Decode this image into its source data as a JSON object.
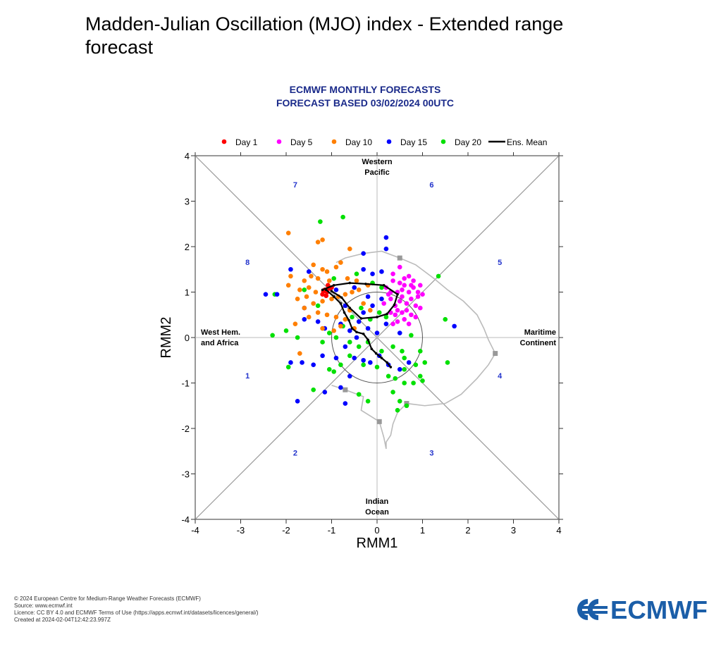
{
  "page": {
    "title": "Madden-Julian Oscillation (MJO) index - Extended range forecast"
  },
  "chart_data": {
    "type": "scatter",
    "title": "ECMWF MONTHLY FORECASTS",
    "subtitle": "FORECAST  BASED 03/02/2024 00UTC",
    "xlabel": "RMM1",
    "ylabel": "RMM2",
    "xlim": [
      -4,
      4
    ],
    "ylim": [
      -4,
      4
    ],
    "xticks": [
      -4,
      -3,
      -2,
      -1,
      0,
      1,
      2,
      3,
      4
    ],
    "yticks": [
      -4,
      -3,
      -2,
      -1,
      0,
      1,
      2,
      3,
      4
    ],
    "phases": [
      {
        "label": "1",
        "x": -2.85,
        "y": -0.9
      },
      {
        "label": "2",
        "x": -1.8,
        "y": -2.6
      },
      {
        "label": "3",
        "x": 1.2,
        "y": -2.6
      },
      {
        "label": "4",
        "x": 2.7,
        "y": -0.9
      },
      {
        "label": "5",
        "x": 2.7,
        "y": 1.6
      },
      {
        "label": "6",
        "x": 1.2,
        "y": 3.3
      },
      {
        "label": "7",
        "x": -1.8,
        "y": 3.3
      },
      {
        "label": "8",
        "x": -2.85,
        "y": 1.6
      }
    ],
    "regions": {
      "top": [
        "Western",
        "Pacific"
      ],
      "bottom": [
        "Indian",
        "Ocean"
      ],
      "left": [
        "West Hem.",
        "and Africa"
      ],
      "right": [
        "Maritime",
        "Continent"
      ]
    },
    "legend": [
      {
        "label": "Day 1",
        "color": "#ff0000",
        "kind": "dot"
      },
      {
        "label": "Day 5",
        "color": "#ff00ff",
        "kind": "dot"
      },
      {
        "label": "Day 10",
        "color": "#ff7f00",
        "kind": "dot"
      },
      {
        "label": "Day 15",
        "color": "#0000ff",
        "kind": "dot"
      },
      {
        "label": "Day 20",
        "color": "#00e000",
        "kind": "dot"
      },
      {
        "label": "Ens. Mean",
        "color": "#000000",
        "kind": "line"
      }
    ],
    "series": [
      {
        "name": "Day 1",
        "color": "#ff0000",
        "points": [
          [
            -1.15,
            1.05
          ],
          [
            -1.1,
            1.0
          ],
          [
            -1.05,
            1.08
          ],
          [
            -1.2,
            0.95
          ],
          [
            -1.0,
            1.1
          ],
          [
            -1.12,
            0.92
          ],
          [
            -1.08,
            1.15
          ],
          [
            -1.18,
            1.02
          ]
        ]
      },
      {
        "name": "Day 5",
        "color": "#ff00ff",
        "points": [
          [
            0.5,
            1.55
          ],
          [
            0.7,
            1.35
          ],
          [
            0.35,
            1.25
          ],
          [
            0.6,
            1.15
          ],
          [
            0.8,
            1.1
          ],
          [
            0.9,
            1.0
          ],
          [
            0.45,
            1.0
          ],
          [
            0.55,
            0.9
          ],
          [
            0.75,
            0.85
          ],
          [
            0.3,
            0.85
          ],
          [
            0.65,
            0.75
          ],
          [
            0.85,
            0.7
          ],
          [
            0.4,
            0.7
          ],
          [
            0.55,
            0.55
          ],
          [
            0.75,
            0.5
          ],
          [
            0.3,
            0.55
          ],
          [
            0.6,
            0.4
          ],
          [
            0.45,
            0.35
          ],
          [
            0.9,
            0.9
          ],
          [
            0.95,
            1.15
          ],
          [
            0.2,
            1.1
          ],
          [
            0.25,
            0.95
          ],
          [
            0.7,
            1.0
          ],
          [
            0.5,
            1.2
          ],
          [
            0.8,
            1.25
          ],
          [
            0.35,
            1.4
          ],
          [
            0.65,
            0.6
          ],
          [
            0.85,
            0.45
          ],
          [
            0.4,
            0.5
          ],
          [
            1.0,
            0.95
          ],
          [
            0.15,
            0.75
          ],
          [
            0.6,
            1.3
          ],
          [
            0.5,
            0.8
          ],
          [
            0.75,
            1.15
          ],
          [
            0.95,
            0.65
          ],
          [
            0.3,
            1.0
          ],
          [
            0.55,
            1.05
          ],
          [
            0.45,
            0.6
          ],
          [
            0.7,
            0.3
          ],
          [
            0.35,
            0.3
          ]
        ]
      },
      {
        "name": "Day 10",
        "color": "#ff7f00",
        "points": [
          [
            -1.95,
            2.3
          ],
          [
            -1.3,
            2.1
          ],
          [
            -1.2,
            2.15
          ],
          [
            -0.6,
            1.95
          ],
          [
            -1.4,
            1.6
          ],
          [
            -1.2,
            1.5
          ],
          [
            -0.8,
            1.65
          ],
          [
            -1.9,
            1.35
          ],
          [
            -1.6,
            1.25
          ],
          [
            -1.45,
            1.35
          ],
          [
            -1.3,
            1.3
          ],
          [
            -1.1,
            1.45
          ],
          [
            -0.9,
            1.55
          ],
          [
            -1.95,
            1.15
          ],
          [
            -1.7,
            1.05
          ],
          [
            -1.5,
            1.1
          ],
          [
            -1.35,
            1.0
          ],
          [
            -1.55,
            0.9
          ],
          [
            -1.75,
            0.85
          ],
          [
            -1.4,
            0.75
          ],
          [
            -1.2,
            0.8
          ],
          [
            -1.0,
            0.85
          ],
          [
            -0.85,
            0.9
          ],
          [
            -0.7,
            0.95
          ],
          [
            -0.55,
            1.0
          ],
          [
            -0.4,
            1.05
          ],
          [
            -1.6,
            0.65
          ],
          [
            -1.3,
            0.55
          ],
          [
            -1.1,
            0.5
          ],
          [
            -0.9,
            0.45
          ],
          [
            -0.7,
            0.4
          ],
          [
            -1.8,
            0.3
          ],
          [
            -1.2,
            0.2
          ],
          [
            -0.95,
            0.15
          ],
          [
            -0.8,
            0.25
          ],
          [
            -1.7,
            -0.35
          ],
          [
            -0.6,
            0.6
          ],
          [
            -0.3,
            0.75
          ],
          [
            -0.15,
            0.6
          ],
          [
            -1.05,
            1.25
          ],
          [
            -0.65,
            1.3
          ],
          [
            -0.45,
            1.25
          ],
          [
            -0.2,
            1.15
          ],
          [
            -1.5,
            0.45
          ],
          [
            -0.5,
            0.2
          ]
        ]
      },
      {
        "name": "Day 15",
        "color": "#0000ff",
        "points": [
          [
            0.2,
            2.2
          ],
          [
            0.2,
            1.95
          ],
          [
            -0.3,
            1.85
          ],
          [
            -1.9,
            1.5
          ],
          [
            -1.5,
            1.45
          ],
          [
            -0.3,
            1.5
          ],
          [
            -0.1,
            1.4
          ],
          [
            0.1,
            1.45
          ],
          [
            -2.45,
            0.95
          ],
          [
            -2.2,
            0.95
          ],
          [
            -1.6,
            0.65
          ],
          [
            -1.6,
            0.4
          ],
          [
            -1.3,
            0.35
          ],
          [
            -1.15,
            0.2
          ],
          [
            -0.8,
            0.3
          ],
          [
            -0.6,
            0.15
          ],
          [
            -0.4,
            0.35
          ],
          [
            -0.2,
            0.2
          ],
          [
            0.0,
            0.1
          ],
          [
            0.2,
            0.3
          ],
          [
            -1.9,
            -0.55
          ],
          [
            -1.65,
            -0.55
          ],
          [
            -1.4,
            -0.6
          ],
          [
            -1.2,
            -0.4
          ],
          [
            -0.9,
            -0.45
          ],
          [
            -0.7,
            -0.2
          ],
          [
            -0.5,
            -0.45
          ],
          [
            -0.3,
            -0.5
          ],
          [
            -0.15,
            -0.55
          ],
          [
            0.05,
            -0.4
          ],
          [
            0.25,
            -0.6
          ],
          [
            0.5,
            -0.7
          ],
          [
            0.7,
            -0.55
          ],
          [
            -0.6,
            -0.85
          ],
          [
            -1.15,
            -1.2
          ],
          [
            -0.8,
            -1.1
          ],
          [
            -1.75,
            -1.4
          ],
          [
            -0.7,
            -1.45
          ],
          [
            1.7,
            0.25
          ],
          [
            -0.2,
            0.9
          ],
          [
            -0.5,
            1.1
          ],
          [
            -0.1,
            0.7
          ],
          [
            0.1,
            0.85
          ],
          [
            -0.9,
            1.05
          ],
          [
            -0.7,
            0.7
          ],
          [
            -0.3,
            0.55
          ],
          [
            0.5,
            0.1
          ],
          [
            -0.45,
            0.0
          ]
        ]
      },
      {
        "name": "Day 20",
        "color": "#00e000",
        "points": [
          [
            -1.25,
            2.55
          ],
          [
            -0.75,
            2.65
          ],
          [
            -0.95,
            1.3
          ],
          [
            -1.6,
            1.05
          ],
          [
            -2.25,
            0.95
          ],
          [
            -2.0,
            0.15
          ],
          [
            -2.3,
            0.05
          ],
          [
            -1.75,
            0.0
          ],
          [
            -1.2,
            -0.1
          ],
          [
            -0.9,
            0.0
          ],
          [
            -0.6,
            -0.1
          ],
          [
            -0.4,
            -0.2
          ],
          [
            -0.2,
            -0.1
          ],
          [
            0.1,
            -0.3
          ],
          [
            0.35,
            -0.2
          ],
          [
            0.55,
            -0.3
          ],
          [
            0.75,
            0.05
          ],
          [
            0.95,
            -0.3
          ],
          [
            0.6,
            -0.45
          ],
          [
            0.85,
            -0.6
          ],
          [
            0.95,
            -0.85
          ],
          [
            1.0,
            -0.95
          ],
          [
            0.8,
            -1.0
          ],
          [
            0.6,
            -1.0
          ],
          [
            0.35,
            -1.2
          ],
          [
            0.5,
            -1.4
          ],
          [
            0.45,
            -1.6
          ],
          [
            -0.2,
            -1.4
          ],
          [
            -0.4,
            -1.25
          ],
          [
            -0.8,
            -0.6
          ],
          [
            -1.05,
            -0.7
          ],
          [
            -1.4,
            -1.15
          ],
          [
            -1.95,
            -0.65
          ],
          [
            1.05,
            -0.55
          ],
          [
            0.6,
            -0.7
          ],
          [
            0.4,
            -0.9
          ],
          [
            0.65,
            -1.5
          ],
          [
            -1.05,
            0.1
          ],
          [
            -0.75,
            0.25
          ],
          [
            -0.55,
            0.45
          ],
          [
            -0.35,
            0.65
          ],
          [
            -0.15,
            0.4
          ],
          [
            0.05,
            0.55
          ],
          [
            1.35,
            1.35
          ],
          [
            1.5,
            0.4
          ],
          [
            1.55,
            -0.55
          ],
          [
            -0.95,
            -0.75
          ],
          [
            -0.6,
            -0.4
          ],
          [
            -0.3,
            -0.6
          ],
          [
            0.0,
            -0.65
          ],
          [
            0.25,
            -0.85
          ],
          [
            -0.45,
            1.4
          ],
          [
            0.1,
            1.1
          ],
          [
            -1.3,
            0.7
          ],
          [
            0.2,
            0.45
          ],
          [
            -0.1,
            1.2
          ]
        ]
      }
    ],
    "ens_mean": [
      [
        -1.12,
        1.05
      ],
      [
        -0.95,
        0.9
      ],
      [
        -0.8,
        0.75
      ],
      [
        -0.72,
        0.55
      ],
      [
        -0.62,
        0.38
      ],
      [
        -0.55,
        0.2
      ],
      [
        -0.45,
        0.12
      ],
      [
        -0.3,
        0.08
      ],
      [
        -0.2,
        -0.05
      ],
      [
        -0.12,
        -0.25
      ],
      [
        -0.02,
        -0.35
      ],
      [
        0.1,
        -0.45
      ],
      [
        0.22,
        -0.55
      ],
      [
        0.3,
        -0.65
      ]
    ],
    "ens_mean_alt": [
      [
        -1.2,
        1.05
      ],
      [
        -0.95,
        1.15
      ],
      [
        -0.6,
        1.2
      ],
      [
        -0.25,
        1.18
      ],
      [
        0.15,
        1.15
      ],
      [
        0.45,
        0.95
      ],
      [
        0.38,
        0.72
      ],
      [
        0.22,
        0.52
      ],
      [
        0.0,
        0.45
      ],
      [
        -0.35,
        0.42
      ],
      [
        -0.6,
        0.65
      ],
      [
        -0.78,
        0.88
      ],
      [
        -1.0,
        1.02
      ]
    ],
    "history_path": [
      [
        -0.9,
        1.65
      ],
      [
        -0.7,
        1.75
      ],
      [
        -0.3,
        1.85
      ],
      [
        0.1,
        1.9
      ],
      [
        0.5,
        1.75
      ],
      [
        0.85,
        1.6
      ],
      [
        1.25,
        1.3
      ],
      [
        1.55,
        1.05
      ],
      [
        1.9,
        0.8
      ],
      [
        2.2,
        0.5
      ],
      [
        2.35,
        0.2
      ],
      [
        2.45,
        -0.05
      ],
      [
        2.6,
        -0.35
      ],
      [
        2.45,
        -0.6
      ],
      [
        2.2,
        -0.9
      ],
      [
        1.85,
        -1.25
      ],
      [
        1.5,
        -1.45
      ],
      [
        1.05,
        -1.5
      ],
      [
        0.65,
        -1.45
      ],
      [
        0.45,
        -1.65
      ],
      [
        0.35,
        -1.9
      ],
      [
        0.3,
        -2.15
      ],
      [
        0.2,
        -2.3
      ],
      [
        0.2,
        -2.45
      ],
      [
        0.15,
        -2.2
      ],
      [
        0.05,
        -1.85
      ],
      [
        -0.35,
        -1.6
      ],
      [
        -0.3,
        -1.3
      ],
      [
        -0.7,
        -1.15
      ],
      [
        -1.0,
        -1.05
      ]
    ]
  },
  "footer": {
    "line1": "© 2024 European Centre for Medium-Range Weather Forecasts (ECMWF)",
    "line2": "Source: www.ecmwf.int",
    "line3": "Licence: CC BY 4.0 and ECMWF Terms of Use (https://apps.ecmwf.int/datasets/licences/general/)",
    "line4": "Created at 2024-02-04T12:42:23.997Z"
  },
  "logo": {
    "text": "ECMWF",
    "color": "#1b5ea8"
  }
}
